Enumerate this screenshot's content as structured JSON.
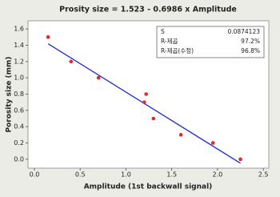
{
  "chart_data": {
    "type": "scatter",
    "title": "Prosity size =  1.523 - 0.6986 x Amplitude",
    "x_label": "Amplitude (1st backwall signal)",
    "y_label": "Porosity size (mm)",
    "points": {
      "color": "#e8262a",
      "x": [
        0.15,
        0.4,
        0.7,
        1.2,
        1.22,
        1.3,
        1.6,
        1.95,
        2.25
      ],
      "values": [
        1.5,
        1.2,
        1.0,
        0.7,
        0.8,
        0.5,
        0.3,
        0.2,
        0.0
      ]
    },
    "fit_line": {
      "color": "#1f2ad1",
      "x": [
        0.15,
        2.25
      ],
      "values": [
        1.418,
        -0.049
      ]
    },
    "xlim": [
      -0.07,
      2.56
    ],
    "ylim": [
      -0.11,
      1.7
    ],
    "xticks": [
      {
        "value": 0,
        "label": "0.0"
      },
      {
        "value": 0.5,
        "label": "0.5"
      },
      {
        "value": 1,
        "label": "1.0"
      },
      {
        "value": 1.5,
        "label": "1.5"
      },
      {
        "value": 2,
        "label": "2.0"
      },
      {
        "value": 2.5,
        "label": "2.5"
      }
    ],
    "yticks": [
      {
        "value": 0,
        "label": "0.0"
      },
      {
        "value": 0.2,
        "label": "0.2"
      },
      {
        "value": 0.4,
        "label": "0.4"
      },
      {
        "value": 0.6,
        "label": "0.6"
      },
      {
        "value": 0.8,
        "label": "0.8"
      },
      {
        "value": 1,
        "label": "1.0"
      },
      {
        "value": 1.2,
        "label": "1.2"
      },
      {
        "value": 1.4,
        "label": "1.4"
      },
      {
        "value": 1.6,
        "label": "1.6"
      }
    ],
    "grid": false,
    "stats_box": [
      [
        "S",
        "0.0874123"
      ],
      [
        "R-제곱",
        "97.2%"
      ],
      [
        "R-제곱(수정)",
        "96.8%"
      ]
    ]
  }
}
